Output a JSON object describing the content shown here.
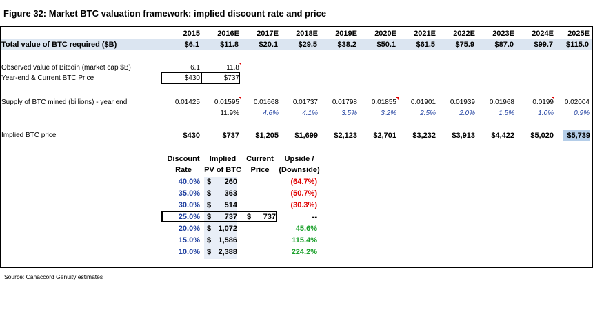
{
  "title": "Figure 32: Market BTC valuation framework: implied discount rate and price",
  "years": [
    "2015",
    "2016E",
    "2017E",
    "2018E",
    "2019E",
    "2020E",
    "2021E",
    "2022E",
    "2023E",
    "2024E",
    "2025E"
  ],
  "total_row": {
    "label": "Total value of BTC required ($B)",
    "values": [
      "$6.1",
      "$11.8",
      "$20.1",
      "$29.5",
      "$38.2",
      "$50.1",
      "$61.5",
      "$75.9",
      "$87.0",
      "$99.7",
      "$115.0"
    ]
  },
  "observed": {
    "label": "Observed value of Bitcoin (market cap $B)",
    "values": [
      "6.1",
      "11.8"
    ]
  },
  "year_end": {
    "label": "Year-end & Current BTC Price",
    "values": [
      "$430",
      "$737"
    ]
  },
  "supply": {
    "label": "Supply of BTC mined (billions) - year end",
    "values": [
      "0.01425",
      "0.01595",
      "0.01668",
      "0.01737",
      "0.01798",
      "0.01855",
      "0.01901",
      "0.01939",
      "0.01968",
      "0.0199",
      "0.02004"
    ],
    "growth": [
      "11.9%",
      "4.6%",
      "4.1%",
      "3.5%",
      "3.2%",
      "2.5%",
      "2.0%",
      "1.5%",
      "1.0%",
      "0.9%"
    ]
  },
  "implied": {
    "label": "Implied BTC price",
    "values": [
      "$430",
      "$737",
      "$1,205",
      "$1,699",
      "$2,123",
      "$2,701",
      "$3,232",
      "$3,913",
      "$4,422",
      "$5,020",
      "$5,739"
    ]
  },
  "discount_table": {
    "headers": [
      [
        "Discount",
        "Rate"
      ],
      [
        "Implied",
        "PV of BTC"
      ],
      [
        "Current",
        "Price"
      ],
      [
        "Upside /",
        "(Downside)"
      ]
    ],
    "rows": [
      {
        "rate": "40.0%",
        "pv": "260",
        "current": "",
        "upside": "(64.7%)",
        "tone": "red"
      },
      {
        "rate": "35.0%",
        "pv": "363",
        "current": "",
        "upside": "(50.7%)",
        "tone": "red"
      },
      {
        "rate": "30.0%",
        "pv": "514",
        "current": "",
        "upside": "(30.3%)",
        "tone": "red"
      },
      {
        "rate": "25.0%",
        "pv": "737",
        "current": "737",
        "upside": "--",
        "tone": "black"
      },
      {
        "rate": "20.0%",
        "pv": "1,072",
        "current": "",
        "upside": "45.6%",
        "tone": "green"
      },
      {
        "rate": "15.0%",
        "pv": "1,586",
        "current": "",
        "upside": "115.4%",
        "tone": "green"
      },
      {
        "rate": "10.0%",
        "pv": "2,388",
        "current": "",
        "upside": "224.2%",
        "tone": "green"
      }
    ],
    "currency": "$"
  },
  "source": "Source: Canaccord Genuity estimates",
  "colors": {
    "total_row_bg": "#dbe5f1",
    "highlight_cell": "#b4cde8",
    "blue_text": "#1f3f9f",
    "red_text": "#e00000",
    "green_text": "#1aa02a"
  }
}
